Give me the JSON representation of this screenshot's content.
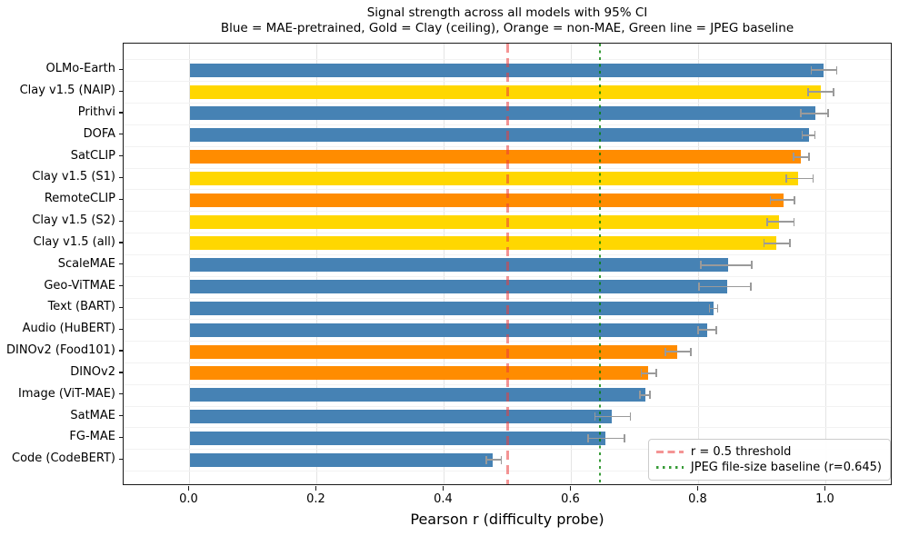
{
  "chart_data": {
    "type": "bar",
    "orientation": "horizontal",
    "title": "Signal strength across all models with 95% CI",
    "subtitle": "Blue = MAE-pretrained, Gold = Clay (ceiling), Orange = non-MAE, Green line = JPEG baseline",
    "xlabel": "Pearson r (difficulty probe)",
    "ylabel": "",
    "xlim": [
      -0.104,
      1.105
    ],
    "xticks": [
      0.0,
      0.2,
      0.4,
      0.6,
      0.8,
      1.0
    ],
    "xtick_labels": [
      "0.0",
      "0.2",
      "0.4",
      "0.6",
      "0.8",
      "1.0"
    ],
    "grid": "vertical major gridlines, faint horizontal row-boundary lines",
    "legend_position": "lower right",
    "colors": {
      "mae": "#4682B4",
      "clay": "#FFD700",
      "nonmae": "#FF8C00"
    },
    "color_meaning": {
      "mae": "MAE-pretrained (blue)",
      "clay": "Clay ceiling (gold)",
      "nonmae": "non-MAE (orange)"
    },
    "error_bar_color": "#9a9a9a",
    "bars": [
      {
        "label": "OLMo-Earth",
        "value": 0.997,
        "ci_low": 0.977,
        "ci_high": 1.017,
        "group": "mae"
      },
      {
        "label": "Clay v1.5 (NAIP)",
        "value": 0.992,
        "ci_low": 0.972,
        "ci_high": 1.012,
        "group": "clay"
      },
      {
        "label": "Prithvi",
        "value": 0.983,
        "ci_low": 0.961,
        "ci_high": 1.004,
        "group": "mae"
      },
      {
        "label": "DOFA",
        "value": 0.973,
        "ci_low": 0.963,
        "ci_high": 0.983,
        "group": "mae"
      },
      {
        "label": "SatCLIP",
        "value": 0.961,
        "ci_low": 0.949,
        "ci_high": 0.974,
        "group": "nonmae"
      },
      {
        "label": "Clay v1.5 (S1)",
        "value": 0.957,
        "ci_low": 0.938,
        "ci_high": 0.98,
        "group": "clay"
      },
      {
        "label": "RemoteCLIP",
        "value": 0.933,
        "ci_low": 0.913,
        "ci_high": 0.951,
        "group": "nonmae"
      },
      {
        "label": "Clay v1.5 (S2)",
        "value": 0.927,
        "ci_low": 0.908,
        "ci_high": 0.95,
        "group": "clay"
      },
      {
        "label": "Clay v1.5 (all)",
        "value": 0.922,
        "ci_low": 0.903,
        "ci_high": 0.944,
        "group": "clay"
      },
      {
        "label": "ScaleMAE",
        "value": 0.847,
        "ci_low": 0.804,
        "ci_high": 0.884,
        "group": "mae"
      },
      {
        "label": "Geo-ViTMAE",
        "value": 0.845,
        "ci_low": 0.801,
        "ci_high": 0.882,
        "group": "mae"
      },
      {
        "label": "Text (BART)",
        "value": 0.823,
        "ci_low": 0.817,
        "ci_high": 0.83,
        "group": "mae"
      },
      {
        "label": "Audio (HuBERT)",
        "value": 0.813,
        "ci_low": 0.799,
        "ci_high": 0.828,
        "group": "mae"
      },
      {
        "label": "DINOv2 (Food101)",
        "value": 0.766,
        "ci_low": 0.748,
        "ci_high": 0.788,
        "group": "nonmae"
      },
      {
        "label": "DINOv2",
        "value": 0.721,
        "ci_low": 0.71,
        "ci_high": 0.734,
        "group": "nonmae"
      },
      {
        "label": "Image (ViT-MAE)",
        "value": 0.716,
        "ci_low": 0.708,
        "ci_high": 0.724,
        "group": "mae"
      },
      {
        "label": "SatMAE",
        "value": 0.664,
        "ci_low": 0.637,
        "ci_high": 0.693,
        "group": "mae"
      },
      {
        "label": "FG-MAE",
        "value": 0.654,
        "ci_low": 0.626,
        "ci_high": 0.684,
        "group": "mae"
      },
      {
        "label": "Code (CodeBERT)",
        "value": 0.476,
        "ci_low": 0.466,
        "ci_high": 0.49,
        "group": "mae"
      }
    ],
    "reference_lines": [
      {
        "label": "r = 0.5 threshold",
        "value": 0.5,
        "style": "dashed",
        "color": "rgba(235,60,60,0.55)"
      },
      {
        "label": "JPEG file-size baseline (r=0.645)",
        "value": 0.645,
        "style": "dotted",
        "color": "rgba(0,128,0,0.78)"
      }
    ]
  }
}
